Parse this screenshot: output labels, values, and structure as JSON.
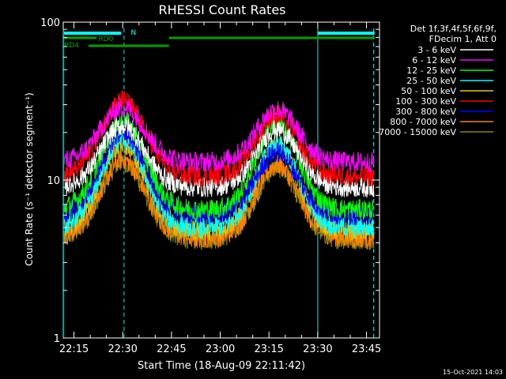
{
  "chart_data": {
    "type": "line",
    "title": "RHESSI Count Rates",
    "xlabel": "Start Time (18-Aug-09 22:11:42)",
    "ylabel": "Count Rate (s⁻¹ detector segment⁻¹)",
    "yscale": "log",
    "ylim": [
      1,
      100
    ],
    "xlim": [
      "22:11:42",
      "23:49:00"
    ],
    "x_ticks": [
      "22:15",
      "22:30",
      "22:45",
      "23:00",
      "23:15",
      "23:30",
      "23:45"
    ],
    "y_ticks": [
      "1",
      "10",
      "100"
    ],
    "legend": {
      "placement": "right",
      "header": [
        "Det 1f,3f,4f,5f,6f,9f,",
        "FDecim 1, Att 0"
      ]
    },
    "series": [
      {
        "name": "3 - 6 keV",
        "color": "#ffffff",
        "base": 9.0,
        "peak1": 22.0,
        "peak2": 21.0
      },
      {
        "name": "6 - 12 keV",
        "color": "#ff00ff",
        "base": 13.0,
        "peak1": 29.0,
        "peak2": 28.0
      },
      {
        "name": "12 - 25 keV",
        "color": "#00ff00",
        "base": 6.5,
        "peak1": 24.0,
        "peak2": 23.0
      },
      {
        "name": "25 - 50 keV",
        "color": "#00ffff",
        "base": 5.0,
        "peak1": 18.0,
        "peak2": 17.0
      },
      {
        "name": "50 - 100 keV",
        "color": "#e6c800",
        "base": 4.8,
        "peak1": 17.0,
        "peak2": 16.5
      },
      {
        "name": "100 - 300 keV",
        "color": "#ff0000",
        "base": 10.5,
        "peak1": 32.0,
        "peak2": 26.0
      },
      {
        "name": "300 - 800 keV",
        "color": "#0000ff",
        "base": 6.0,
        "peak1": 20.0,
        "peak2": 15.0
      },
      {
        "name": "800 - 7000 keV",
        "color": "#ff8000",
        "base": 4.3,
        "peak1": 13.5,
        "peak2": 12.5
      },
      {
        "name": "7000 - 15000 keV",
        "color": "#888800",
        "base": 4.2,
        "peak1": 13.0,
        "peak2": 12.0
      }
    ],
    "flags": [
      {
        "label": "N",
        "color": "#00ffff"
      },
      {
        "label": "RD0",
        "color": "#00a000"
      },
      {
        "label": "RD4",
        "color": "#00a000"
      }
    ],
    "timestamp": "15-Oct-2021 14:03"
  }
}
